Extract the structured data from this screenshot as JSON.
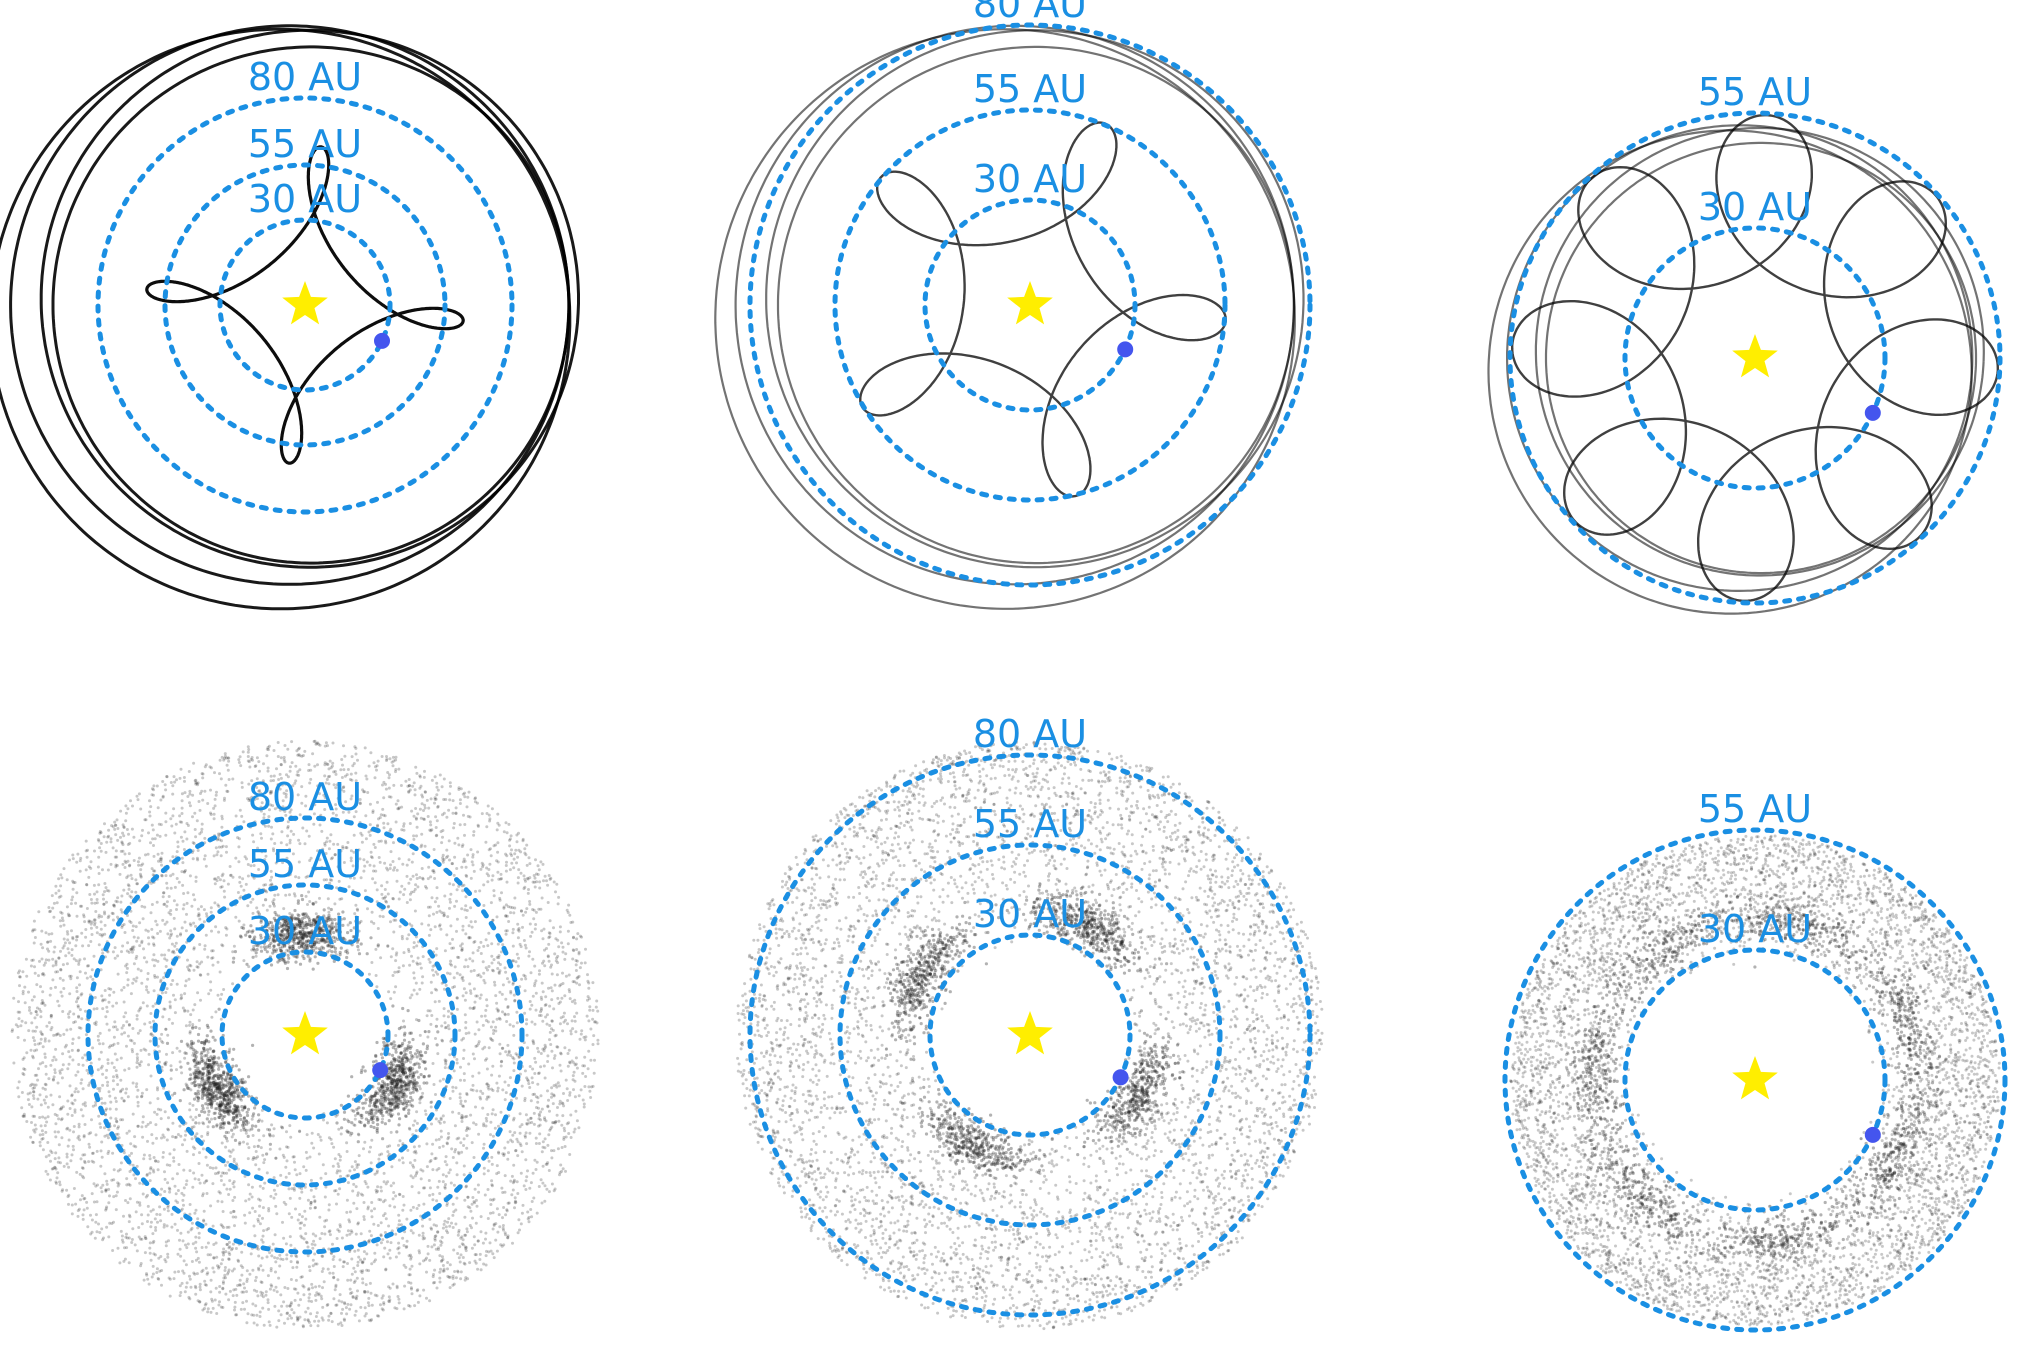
{
  "colors": {
    "ring": "#1a8fe3",
    "label": "#1a8fe3",
    "star": "#ffee00",
    "planet": "#4455ee",
    "path": "#000000",
    "particles": "#222222"
  },
  "panels": [
    {
      "id": "a",
      "kind": "orbit",
      "lobes": 3,
      "labels": [
        "80 AU",
        "55 AU",
        "30 AU"
      ],
      "planet_angle_deg": 25
    },
    {
      "id": "b",
      "kind": "orbit",
      "lobes": 4,
      "labels": [
        "80 AU",
        "55 AU",
        "30 AU"
      ],
      "planet_angle_deg": 25
    },
    {
      "id": "c",
      "kind": "orbit",
      "lobes": 7,
      "labels": [
        "55 AU",
        "30 AU"
      ],
      "planet_angle_deg": 25
    },
    {
      "id": "d",
      "kind": "disk",
      "lobes": 3,
      "labels": [
        "80 AU",
        "55 AU",
        "30 AU"
      ],
      "planet_angle_deg": 25
    },
    {
      "id": "e",
      "kind": "disk",
      "lobes": 4,
      "labels": [
        "80 AU",
        "55 AU",
        "30 AU"
      ],
      "planet_angle_deg": 25
    },
    {
      "id": "f",
      "kind": "disk",
      "lobes": 7,
      "labels": [
        "55 AU",
        "30 AU"
      ],
      "planet_angle_deg": 25
    }
  ]
}
